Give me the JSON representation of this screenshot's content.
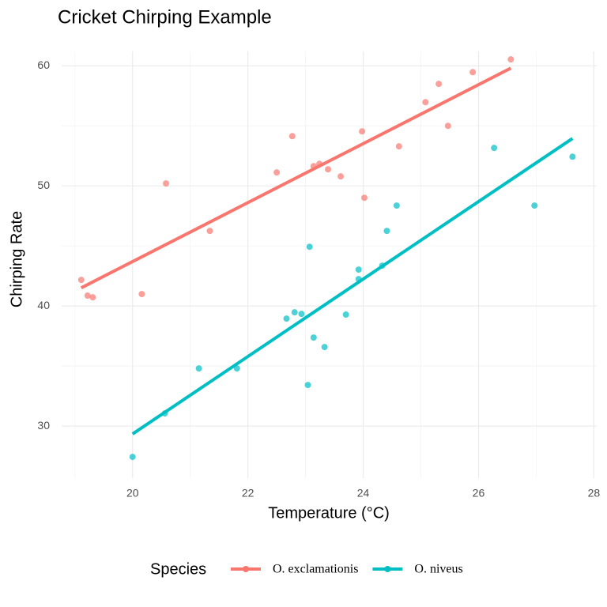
{
  "chart_data": {
    "type": "scatter",
    "title": "Cricket Chirping Example",
    "x_label": "Temperature (°C)",
    "y_label": "Chirping Rate",
    "legend_title": "Species",
    "legend_position": "bottom",
    "grid": true,
    "xlim": [
      18.77,
      28.05
    ],
    "ylim": [
      25.66,
      61.2
    ],
    "xticks": [
      20,
      22,
      24,
      26,
      28
    ],
    "yticks": [
      30,
      40,
      50,
      60
    ],
    "series": [
      {
        "name": "O. exclamationis",
        "color": "#f8766d",
        "x": [
          19.11,
          19.22,
          19.31,
          20.16,
          20.58,
          21.34,
          22.5,
          22.77,
          23.14,
          23.24,
          23.39,
          23.61,
          23.98,
          24.02,
          24.62,
          25.08,
          25.31,
          25.47,
          25.9,
          26.56
        ],
        "values": [
          42.17,
          40.86,
          40.72,
          40.99,
          50.2,
          46.25,
          51.12,
          54.14,
          51.64,
          51.84,
          51.38,
          50.79,
          54.54,
          49.01,
          53.29,
          56.97,
          58.49,
          55.0,
          59.47,
          60.53
        ],
        "fit": {
          "x": [
            19.11,
            26.56
          ],
          "values": [
            41.51,
            59.8
          ]
        }
      },
      {
        "name": "O. niveus",
        "color": "#00bfc4",
        "x": [
          20.0,
          20.56,
          21.15,
          21.81,
          22.67,
          22.81,
          22.93,
          23.04,
          23.07,
          23.14,
          23.33,
          23.7,
          23.92,
          23.92,
          24.33,
          24.41,
          24.58,
          26.27,
          26.97,
          27.63
        ],
        "values": [
          27.43,
          31.05,
          34.8,
          34.8,
          38.95,
          39.47,
          39.34,
          33.42,
          44.93,
          37.37,
          36.58,
          39.28,
          43.03,
          42.24,
          43.36,
          46.25,
          48.36,
          53.16,
          48.36,
          52.43
        ],
        "fit": {
          "x": [
            20.0,
            27.63
          ],
          "values": [
            29.34,
            53.95
          ]
        }
      }
    ]
  }
}
